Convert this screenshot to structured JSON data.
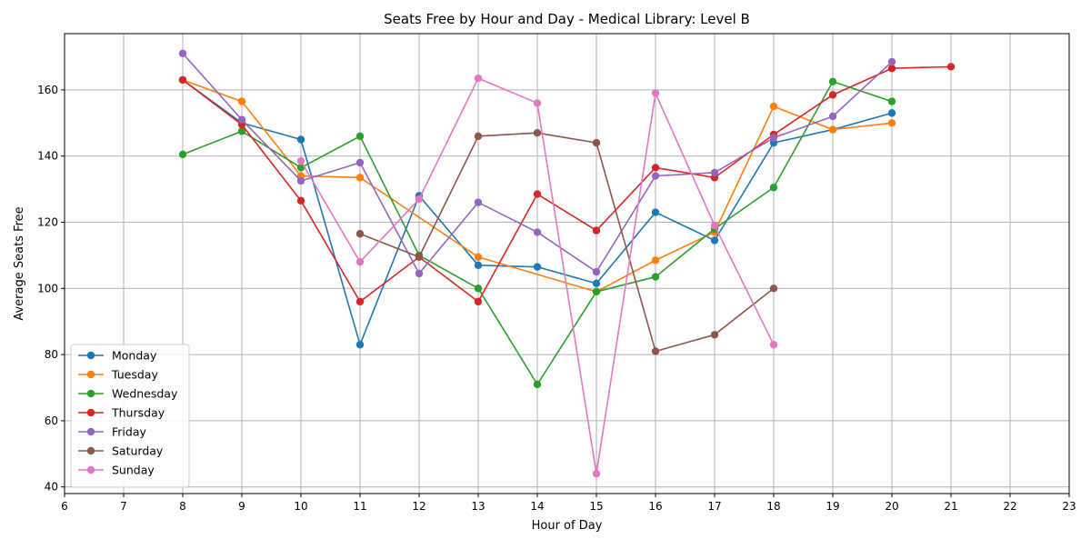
{
  "chart_data": {
    "type": "line",
    "title": "Seats Free by Hour and Day - Medical Library: Level B",
    "xlabel": "Hour of Day",
    "ylabel": "Average Seats Free",
    "xlim": [
      6,
      23
    ],
    "ylim": [
      38,
      177
    ],
    "xticks": [
      6,
      7,
      8,
      9,
      10,
      11,
      12,
      13,
      14,
      15,
      16,
      17,
      18,
      19,
      20,
      21,
      22,
      23
    ],
    "yticks": [
      40,
      60,
      80,
      100,
      120,
      140,
      160
    ],
    "grid": true,
    "legend_position": "lower-left",
    "series": [
      {
        "name": "Monday",
        "color": "#1f77b4",
        "points": [
          [
            8,
            163
          ],
          [
            9,
            150
          ],
          [
            10,
            145
          ],
          [
            11,
            83
          ],
          [
            12,
            128
          ],
          [
            13,
            107
          ],
          [
            14,
            106.5
          ],
          [
            15,
            101.5
          ],
          [
            16,
            123
          ],
          [
            17,
            114.5
          ],
          [
            18,
            144
          ],
          [
            19,
            148
          ],
          [
            20,
            153
          ]
        ]
      },
      {
        "name": "Tuesday",
        "color": "#ff7f0e",
        "points": [
          [
            8,
            163
          ],
          [
            9,
            156.5
          ],
          [
            10,
            134
          ],
          [
            11,
            133.5
          ],
          [
            13,
            109.5
          ],
          [
            15,
            99
          ],
          [
            16,
            108.5
          ],
          [
            17,
            117
          ],
          [
            18,
            155
          ],
          [
            19,
            148
          ],
          [
            20,
            150
          ]
        ]
      },
      {
        "name": "Wednesday",
        "color": "#2ca02c",
        "points": [
          [
            8,
            140.5
          ],
          [
            9,
            147.5
          ],
          [
            10,
            136.5
          ],
          [
            11,
            146
          ],
          [
            12,
            110
          ],
          [
            13,
            100
          ],
          [
            14,
            71
          ],
          [
            15,
            99
          ],
          [
            16,
            103.5
          ],
          [
            17,
            118
          ],
          [
            18,
            130.5
          ],
          [
            19,
            162.5
          ],
          [
            20,
            156.5
          ]
        ]
      },
      {
        "name": "Thursday",
        "color": "#d62728",
        "points": [
          [
            8,
            163
          ],
          [
            9,
            149.5
          ],
          [
            10,
            126.5
          ],
          [
            11,
            96
          ],
          [
            12,
            109.5
          ],
          [
            13,
            96
          ],
          [
            14,
            128.5
          ],
          [
            15,
            117.5
          ],
          [
            16,
            136.5
          ],
          [
            17,
            133.5
          ],
          [
            18,
            146.5
          ],
          [
            19,
            158.5
          ],
          [
            20,
            166.5
          ],
          [
            21,
            167
          ]
        ]
      },
      {
        "name": "Friday",
        "color": "#9467bd",
        "points": [
          [
            8,
            171
          ],
          [
            9,
            151
          ],
          [
            10,
            132.5
          ],
          [
            11,
            138
          ],
          [
            12,
            104.5
          ],
          [
            13,
            126
          ],
          [
            14,
            117
          ],
          [
            15,
            105
          ],
          [
            16,
            134
          ],
          [
            17,
            135
          ],
          [
            18,
            145.5
          ],
          [
            19,
            152
          ],
          [
            20,
            168.5
          ]
        ]
      },
      {
        "name": "Saturday",
        "color": "#8c564b",
        "points": [
          [
            11,
            116.5
          ],
          [
            12,
            109.5
          ],
          [
            13,
            146
          ],
          [
            14,
            147
          ],
          [
            15,
            144
          ],
          [
            16,
            81
          ],
          [
            17,
            86
          ],
          [
            18,
            100
          ]
        ]
      },
      {
        "name": "Sunday",
        "color": "#e377c2",
        "points": [
          [
            10,
            138.5
          ],
          [
            11,
            108
          ],
          [
            12,
            127
          ],
          [
            13,
            163.5
          ],
          [
            14,
            156
          ],
          [
            15,
            44
          ],
          [
            16,
            159
          ],
          [
            17,
            119
          ],
          [
            18,
            83
          ]
        ]
      }
    ]
  }
}
